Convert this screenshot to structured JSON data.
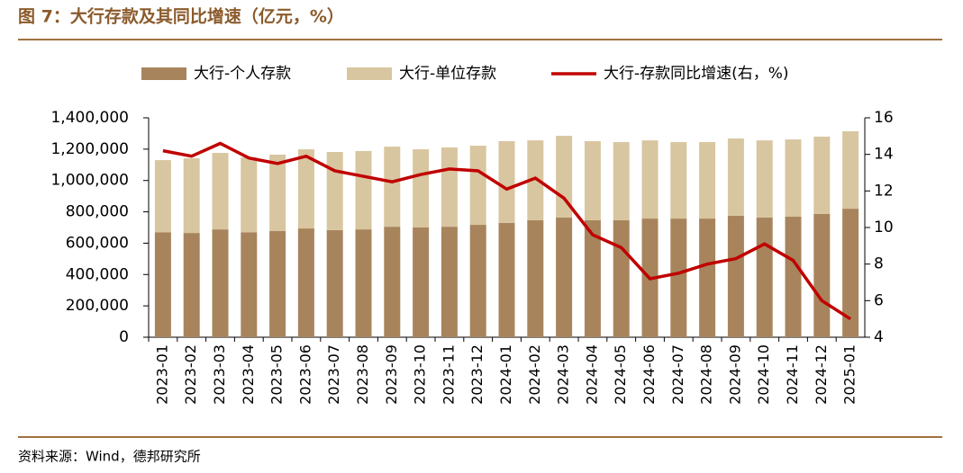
{
  "chart_data": {
    "type": "bar",
    "title": "图 7：大行存款及其同比增速（亿元，%）",
    "source": "资料来源：Wind，德邦研究所",
    "categories": [
      "2023-01",
      "2023-02",
      "2023-03",
      "2023-04",
      "2023-05",
      "2023-06",
      "2023-07",
      "2023-08",
      "2023-09",
      "2023-10",
      "2023-11",
      "2023-12",
      "2024-01",
      "2024-02",
      "2024-03",
      "2024-04",
      "2024-05",
      "2024-06",
      "2024-07",
      "2024-08",
      "2024-09",
      "2024-10",
      "2024-11",
      "2024-12",
      "2025-01"
    ],
    "series": [
      {
        "name": "大行-个人存款",
        "color": "#a8845c",
        "type": "bar",
        "stack": true,
        "values": [
          670000,
          665000,
          688000,
          670000,
          677000,
          694000,
          683000,
          688000,
          705000,
          700000,
          705000,
          717000,
          729000,
          746000,
          763000,
          746000,
          746000,
          757000,
          757000,
          757000,
          775000,
          763000,
          769000,
          786000,
          820000
        ]
      },
      {
        "name": "大行-单位存款",
        "color": "#d8c6a0",
        "type": "bar",
        "stack": true,
        "values": [
          460000,
          477000,
          488000,
          477000,
          488000,
          505000,
          499000,
          500000,
          511000,
          499000,
          506000,
          505000,
          522000,
          510000,
          522000,
          505000,
          499000,
          499000,
          488000,
          488000,
          493000,
          493000,
          493000,
          494000,
          494000
        ]
      },
      {
        "name": "大行-存款同比增速(右，%)",
        "color": "#c00000",
        "type": "line",
        "axis": "y2",
        "values": [
          14.2,
          13.9,
          14.6,
          13.8,
          13.5,
          13.9,
          13.1,
          12.8,
          12.5,
          12.9,
          13.2,
          13.1,
          12.1,
          12.7,
          11.6,
          9.6,
          8.9,
          7.2,
          7.5,
          8.0,
          8.3,
          9.1,
          8.2,
          6.0,
          5.0
        ]
      }
    ],
    "ylim": [
      0,
      1400000
    ],
    "yticks": [
      0,
      {
        "value": 200000,
        "label": "200,000"
      },
      {
        "value": 400000,
        "label": "400,000"
      },
      {
        "value": 600000,
        "label": "600,000"
      },
      {
        "value": 800000,
        "label": "800,000"
      },
      {
        "value": 1000000,
        "label": "1,000,000"
      },
      {
        "value": 1200000,
        "label": "1,200,000"
      },
      {
        "value": 1400000,
        "label": "1,400,000"
      }
    ],
    "y2lim": [
      4,
      16
    ],
    "y2ticks": [
      4,
      6,
      8,
      10,
      12,
      14,
      16
    ],
    "legend": "top"
  }
}
